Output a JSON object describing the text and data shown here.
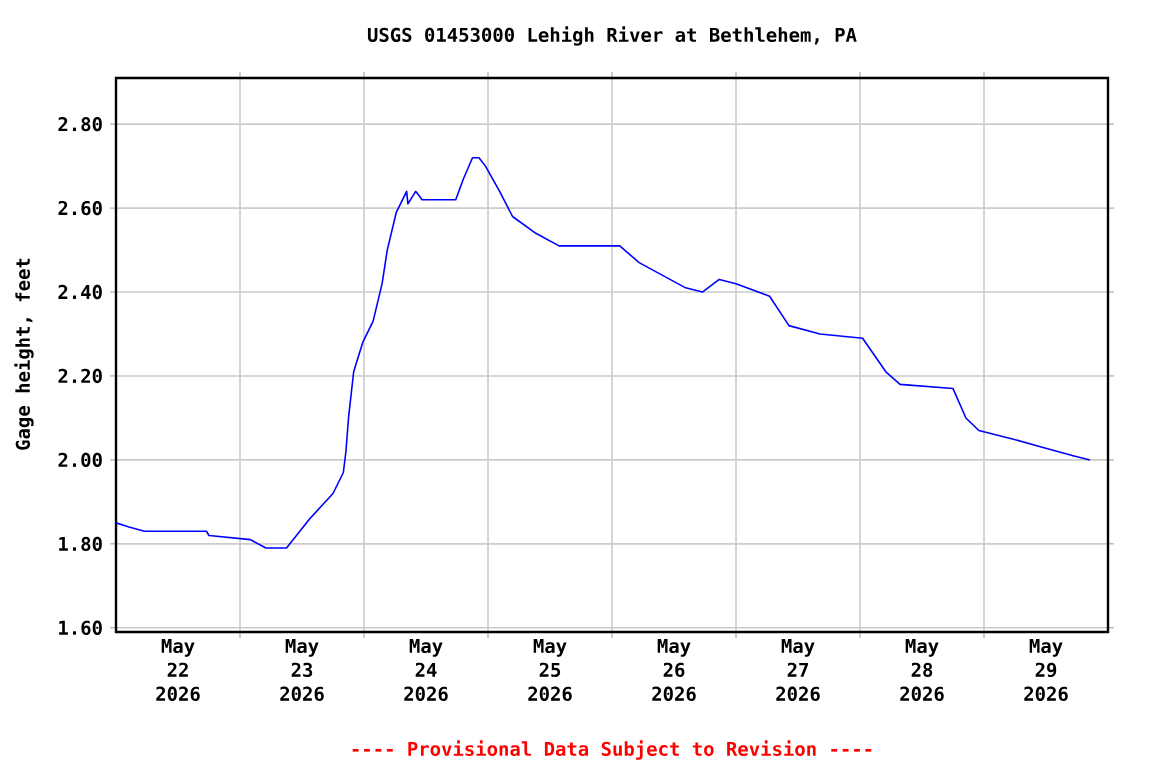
{
  "chart_data": {
    "type": "line",
    "title": "USGS 01453000 Lehigh River at Bethlehem, PA",
    "ylabel": "Gage height, feet",
    "annotations": [
      "---- Provisional Data Subject to Revision ----"
    ],
    "xlim": [
      "2026-05-22",
      "2026-05-30"
    ],
    "xticks": [
      {
        "value": "2026-05-22T12:00",
        "label": "May 22 2026"
      },
      {
        "value": "2026-05-23T12:00",
        "label": "May 23 2026"
      },
      {
        "value": "2026-05-24T12:00",
        "label": "May 24 2026"
      },
      {
        "value": "2026-05-25T12:00",
        "label": "May 25 2026"
      },
      {
        "value": "2026-05-26T12:00",
        "label": "May 26 2026"
      },
      {
        "value": "2026-05-27T12:00",
        "label": "May 27 2026"
      },
      {
        "value": "2026-05-28T12:00",
        "label": "May 28 2026"
      },
      {
        "value": "2026-05-29T12:00",
        "label": "May 29 2026"
      },
      {
        "value": "2026-05-23",
        "label": null
      },
      {
        "value": "2026-05-24",
        "label": null
      },
      {
        "value": "2026-05-25",
        "label": null
      },
      {
        "value": "2026-05-26",
        "label": null
      },
      {
        "value": "2026-05-27",
        "label": null
      },
      {
        "value": "2026-05-28",
        "label": null
      },
      {
        "value": "2026-05-29",
        "label": null
      }
    ],
    "ylim": [
      1.59,
      2.91
    ],
    "yticks": [
      {
        "value": 1.6,
        "label": "1.60"
      },
      {
        "value": 1.8,
        "label": "1.80"
      },
      {
        "value": 2.0,
        "label": "2.00"
      },
      {
        "value": 2.2,
        "label": "2.20"
      },
      {
        "value": 2.4,
        "label": "2.40"
      },
      {
        "value": 2.6,
        "label": "2.60"
      },
      {
        "value": 2.8,
        "label": "2.80"
      }
    ],
    "grid": true,
    "marker": "none",
    "line_style": "solid",
    "series": [
      {
        "color": "#0000ff",
        "x": [
          "2026-05-22T00:00",
          "2026-05-22T02:30",
          "2026-05-22T05:30",
          "2026-05-22T17:30",
          "2026-05-22T18:00",
          "2026-05-23T02:00",
          "2026-05-23T05:00",
          "2026-05-23T09:00",
          "2026-05-23T13:30",
          "2026-05-23T18:00",
          "2026-05-23T20:00",
          "2026-05-23T20:30",
          "2026-05-23T21:00",
          "2026-05-23T22:00",
          "2026-05-23T23:45",
          "2026-05-24T01:45",
          "2026-05-24T03:30",
          "2026-05-24T04:30",
          "2026-05-24T06:15",
          "2026-05-24T08:15",
          "2026-05-24T08:30",
          "2026-05-24T10:00",
          "2026-05-24T11:15",
          "2026-05-24T15:45",
          "2026-05-24T17:45",
          "2026-05-24T19:15",
          "2026-05-24T21:00",
          "2026-05-24T22:15",
          "2026-05-24T23:30",
          "2026-05-25T02:15",
          "2026-05-25T04:45",
          "2026-05-25T09:15",
          "2026-05-25T13:45",
          "2026-05-26T01:30",
          "2026-05-26T05:15",
          "2026-05-26T09:45",
          "2026-05-26T14:15",
          "2026-05-26T17:30",
          "2026-05-26T20:45",
          "2026-05-27T00:00",
          "2026-05-27T06:30",
          "2026-05-27T10:15",
          "2026-05-27T16:15",
          "2026-05-28T00:30",
          "2026-05-28T05:00",
          "2026-05-28T07:45",
          "2026-05-28T18:00",
          "2026-05-28T20:30",
          "2026-05-28T23:00",
          "2026-05-29T05:30",
          "2026-05-29T11:15",
          "2026-05-29T17:15",
          "2026-05-29T20:30"
        ],
        "values": [
          1.85,
          1.84,
          1.83,
          1.83,
          1.82,
          1.81,
          1.79,
          1.79,
          1.86,
          1.92,
          1.97,
          2.02,
          2.1,
          2.21,
          2.28,
          2.33,
          2.42,
          2.5,
          2.59,
          2.64,
          2.61,
          2.64,
          2.62,
          2.62,
          2.62,
          2.67,
          2.72,
          2.72,
          2.7,
          2.64,
          2.58,
          2.54,
          2.51,
          2.51,
          2.47,
          2.44,
          2.41,
          2.4,
          2.43,
          2.42,
          2.39,
          2.32,
          2.3,
          2.29,
          2.21,
          2.18,
          2.17,
          2.1,
          2.07,
          2.05,
          2.03,
          2.01,
          2.0
        ]
      }
    ]
  }
}
